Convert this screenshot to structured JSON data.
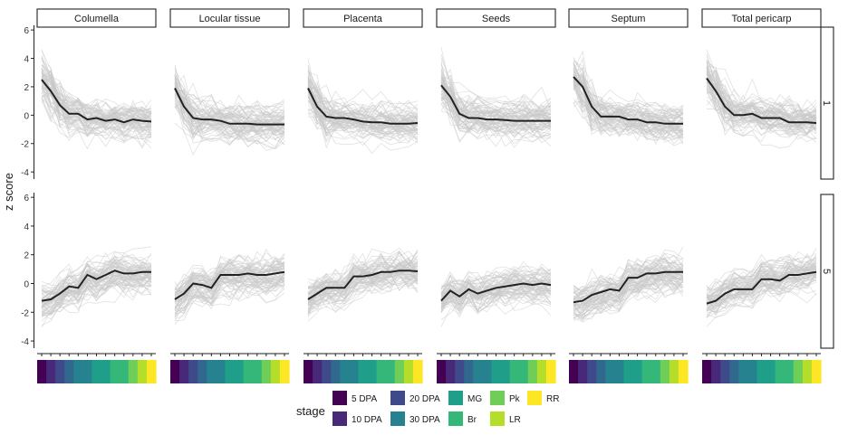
{
  "chart_data": {
    "type": "line",
    "y_axis_label": "z score",
    "y_ticks": [
      -4,
      -2,
      0,
      2,
      4,
      6
    ],
    "ylim": [
      -4.5,
      6.2
    ],
    "facet_columns": [
      "Columella",
      "Locular tissue",
      "Placenta",
      "Seeds",
      "Septum",
      "Total pericarp"
    ],
    "facet_rows": [
      "1",
      "5"
    ],
    "x_stage_count": 13,
    "legend": {
      "title": "stage",
      "placement": "bottom",
      "entries": [
        {
          "label": "5 DPA",
          "color": "#440154"
        },
        {
          "label": "10 DPA",
          "color": "#482878"
        },
        {
          "label": "20 DPA",
          "color": "#3e4a89"
        },
        {
          "label": "30 DPA",
          "color": "#26828e"
        },
        {
          "label": "MG",
          "color": "#1f9e89"
        },
        {
          "label": "Br",
          "color": "#35b779"
        },
        {
          "label": "Pk",
          "color": "#6ece58"
        },
        {
          "label": "LR",
          "color": "#b5de2b"
        },
        {
          "label": "RR",
          "color": "#fde725"
        }
      ]
    },
    "stage_strip_colors": [
      "#440154",
      "#482878",
      "#3e4a89",
      "#31688e",
      "#26828e",
      "#26828e",
      "#1f9e89",
      "#1f9e89",
      "#35b779",
      "#35b779",
      "#6ece58",
      "#b5de2b",
      "#fde725"
    ],
    "panels": [
      {
        "row": "1",
        "column": "Columella",
        "mean": [
          2.5,
          1.7,
          0.7,
          0.1,
          0.1,
          -0.3,
          -0.2,
          -0.4,
          -0.3,
          -0.5,
          -0.3,
          -0.4,
          -0.45
        ]
      },
      {
        "row": "1",
        "column": "Locular tissue",
        "mean": [
          1.9,
          0.6,
          -0.2,
          -0.3,
          -0.3,
          -0.4,
          -0.6,
          -0.6,
          -0.6,
          -0.65,
          -0.65,
          -0.65,
          -0.65
        ]
      },
      {
        "row": "1",
        "column": "Placenta",
        "mean": [
          1.9,
          0.6,
          -0.1,
          -0.2,
          -0.2,
          -0.3,
          -0.45,
          -0.5,
          -0.5,
          -0.6,
          -0.6,
          -0.6,
          -0.55
        ]
      },
      {
        "row": "1",
        "column": "Seeds",
        "mean": [
          2.1,
          1.3,
          0.1,
          -0.2,
          -0.2,
          -0.3,
          -0.3,
          -0.35,
          -0.4,
          -0.4,
          -0.4,
          -0.4,
          -0.4
        ]
      },
      {
        "row": "1",
        "column": "Septum",
        "mean": [
          2.7,
          2.0,
          0.6,
          -0.1,
          -0.1,
          -0.1,
          -0.3,
          -0.3,
          -0.5,
          -0.5,
          -0.6,
          -0.6,
          -0.6
        ]
      },
      {
        "row": "1",
        "column": "Total pericarp",
        "mean": [
          2.6,
          1.7,
          0.6,
          0.0,
          0.0,
          0.1,
          -0.2,
          -0.2,
          -0.2,
          -0.5,
          -0.5,
          -0.5,
          -0.55
        ]
      },
      {
        "row": "5",
        "column": "Columella",
        "mean": [
          -1.2,
          -1.1,
          -0.7,
          -0.2,
          -0.3,
          0.6,
          0.3,
          0.6,
          0.9,
          0.7,
          0.7,
          0.8,
          0.8
        ]
      },
      {
        "row": "5",
        "column": "Locular tissue",
        "mean": [
          -1.1,
          -0.7,
          0.0,
          -0.1,
          -0.3,
          0.6,
          0.6,
          0.6,
          0.7,
          0.6,
          0.6,
          0.7,
          0.8
        ]
      },
      {
        "row": "5",
        "column": "Placenta",
        "mean": [
          -1.1,
          -0.7,
          -0.3,
          -0.3,
          -0.3,
          0.5,
          0.5,
          0.6,
          0.8,
          0.8,
          0.9,
          0.9,
          0.85
        ]
      },
      {
        "row": "5",
        "column": "Seeds",
        "mean": [
          -1.2,
          -0.5,
          -0.9,
          -0.4,
          -0.7,
          -0.5,
          -0.3,
          -0.2,
          -0.1,
          0.0,
          -0.1,
          0.0,
          -0.1
        ]
      },
      {
        "row": "5",
        "column": "Septum",
        "mean": [
          -1.3,
          -1.2,
          -0.8,
          -0.6,
          -0.4,
          -0.5,
          0.4,
          0.4,
          0.7,
          0.7,
          0.8,
          0.8,
          0.8
        ]
      },
      {
        "row": "5",
        "column": "Total pericarp",
        "mean": [
          -1.4,
          -1.2,
          -0.7,
          -0.4,
          -0.4,
          -0.4,
          0.3,
          0.3,
          0.2,
          0.6,
          0.6,
          0.7,
          0.8
        ]
      }
    ]
  }
}
